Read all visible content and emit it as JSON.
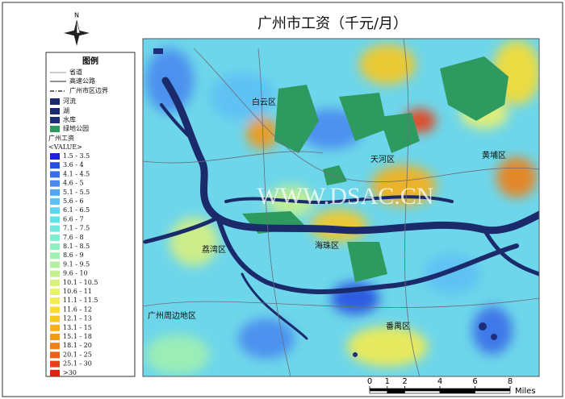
{
  "title": "广州市工资（千元/月）",
  "north": "N",
  "legend": {
    "title": "图例",
    "items": [
      "省道",
      "高速公路",
      "广州市区边界",
      "河流",
      "湖",
      "水库",
      "绿地公园"
    ],
    "value_title": "广州工资",
    "value_field": "<VALUE>",
    "classes": [
      {
        "label": "1.5 - 3.5",
        "color": "#1f1fd6"
      },
      {
        "label": "3.6 - 4",
        "color": "#2850e0"
      },
      {
        "label": "4.1 - 4.5",
        "color": "#3a6ee8"
      },
      {
        "label": "4.6 - 5",
        "color": "#4a8af0"
      },
      {
        "label": "5.1 - 5.5",
        "color": "#55a5f5"
      },
      {
        "label": "5.6 - 6",
        "color": "#5ec0f5"
      },
      {
        "label": "6.1 - 6.5",
        "color": "#5fd4f0"
      },
      {
        "label": "6.6 - 7",
        "color": "#66e0e8"
      },
      {
        "label": "7.1 - 7.5",
        "color": "#70e8dc"
      },
      {
        "label": "7.6 - 8",
        "color": "#80ecd0"
      },
      {
        "label": "8.1 - 8.5",
        "color": "#90f0c0"
      },
      {
        "label": "8.6 - 9",
        "color": "#a0f0b0"
      },
      {
        "label": "9.1 - 9.5",
        "color": "#b0f0a0"
      },
      {
        "label": "9.6 - 10",
        "color": "#c4f090"
      },
      {
        "label": "10.1 - 10.5",
        "color": "#d8f080"
      },
      {
        "label": "10.6 - 11",
        "color": "#e8f070"
      },
      {
        "label": "11.1 - 11.5",
        "color": "#f4ec50"
      },
      {
        "label": "11.6 - 12",
        "color": "#f8dc30"
      },
      {
        "label": "12.1 - 13",
        "color": "#f8c820"
      },
      {
        "label": "13.1 - 15",
        "color": "#f8b018"
      },
      {
        "label": "15.1 - 18",
        "color": "#f49818"
      },
      {
        "label": "18.1 - 20",
        "color": "#f08018"
      },
      {
        "label": "20.1 - 25",
        "color": "#ec6018"
      },
      {
        "label": "25.1 - 30",
        "color": "#e84018"
      },
      {
        "label": ">30",
        "color": "#e02010"
      }
    ]
  },
  "districts": [
    "白云区",
    "天河区",
    "黄埔区",
    "荔湾区",
    "海珠区",
    "番禺区",
    "广州周边地区"
  ],
  "watermark": "WWW.DSAC.CN",
  "scale_bar": {
    "ticks": [
      0,
      1,
      2,
      4,
      6,
      8
    ],
    "unit": "Miles"
  }
}
